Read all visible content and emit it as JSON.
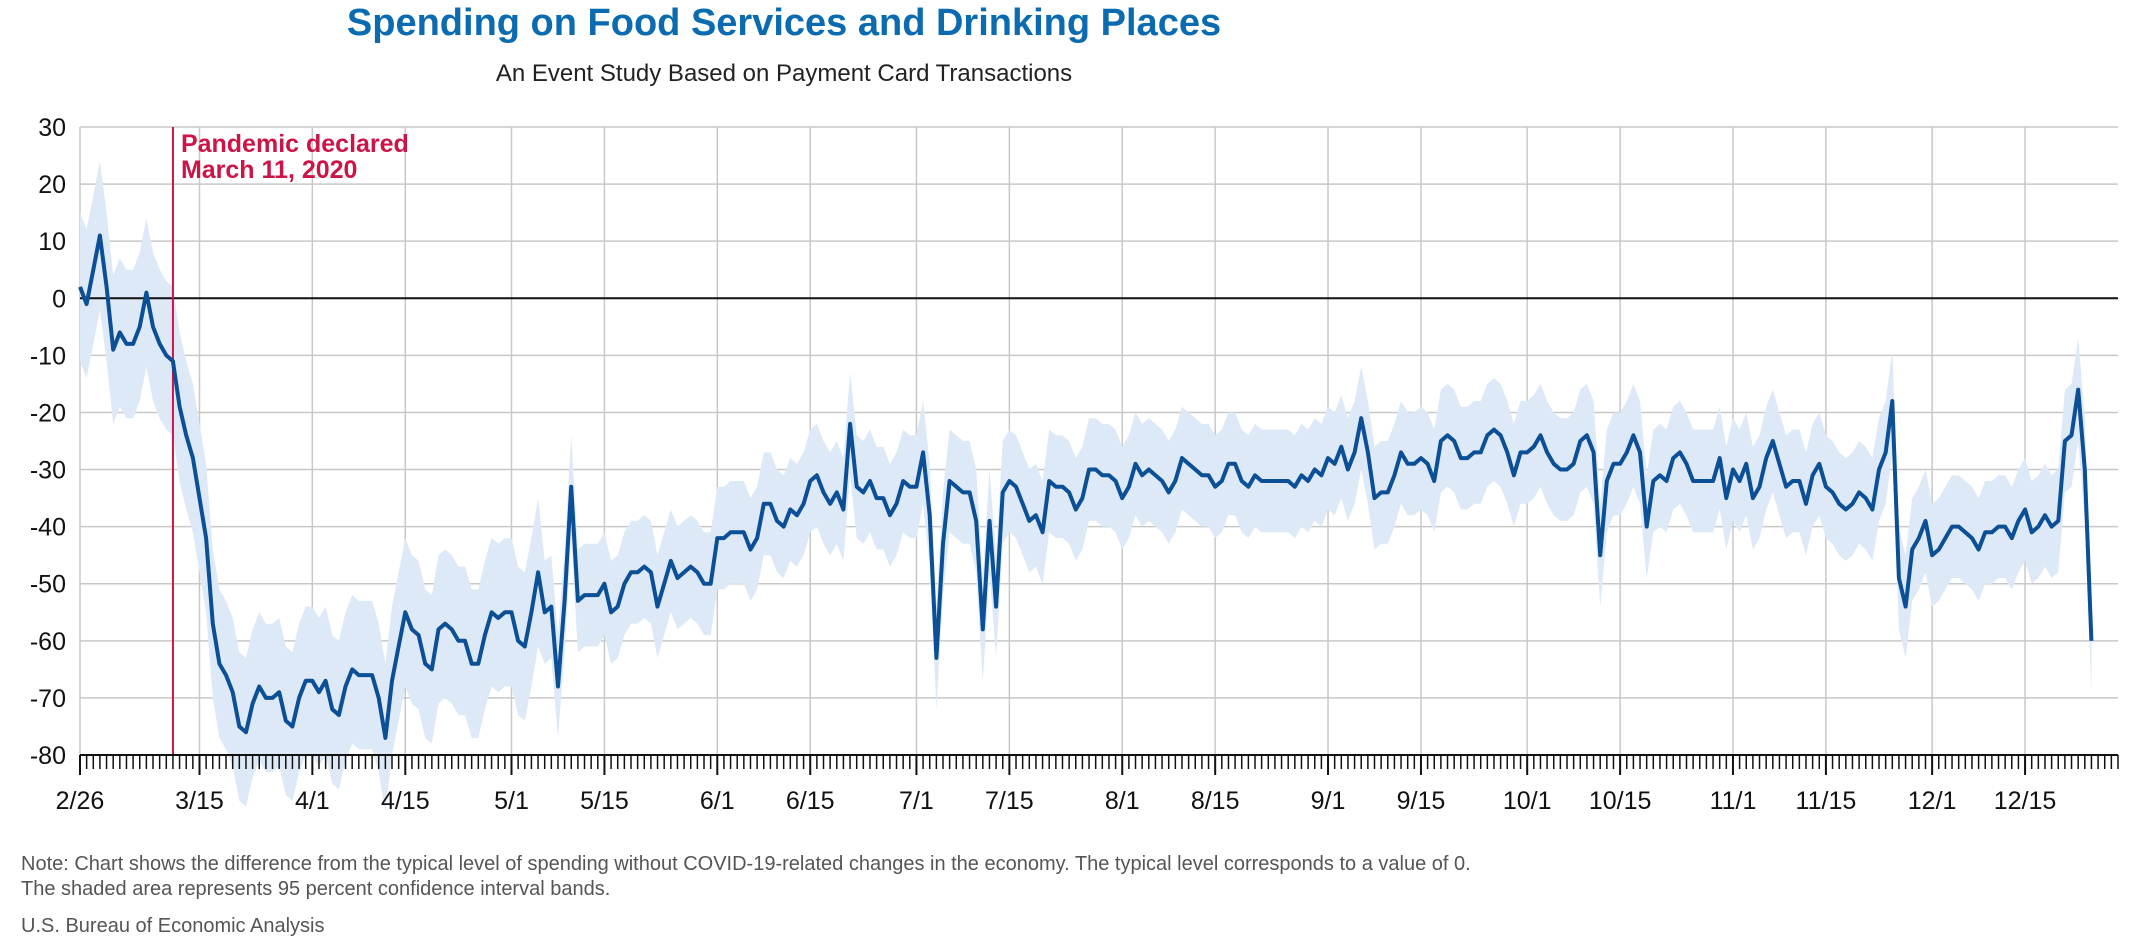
{
  "chart_data": {
    "type": "line",
    "title": "Spending on Food Services and Drinking Places",
    "subtitle": "An Event Study Based on Payment Card Transactions",
    "xlabel": "",
    "ylabel": "",
    "ylim": [
      -80,
      30
    ],
    "yticks": [
      30,
      20,
      10,
      0,
      -10,
      -20,
      -30,
      -40,
      -50,
      -60,
      -70,
      -80
    ],
    "x_tick_labels": [
      "2/26",
      "3/15",
      "4/1",
      "4/15",
      "5/1",
      "5/15",
      "6/1",
      "6/15",
      "7/1",
      "7/15",
      "8/1",
      "8/15",
      "9/1",
      "9/15",
      "10/1",
      "10/15",
      "11/1",
      "11/15",
      "12/1",
      "12/15"
    ],
    "grid": true,
    "confidence_band": "95 percent confidence interval",
    "annotation": {
      "date": "2020-03-11",
      "lines": [
        "Pandemic declared",
        "March 11, 2020"
      ],
      "color": "#cc1447"
    },
    "line_color": "#0b4f96",
    "band_color": "#dde9f7",
    "series": [
      {
        "x_start": "2020-02-26",
        "x_end": "2020-12-29",
        "x_step_days": 1,
        "values": [
          2,
          -1,
          5,
          11,
          2,
          -9,
          -6,
          -8,
          -8,
          -5,
          1,
          -5,
          -8,
          -10,
          -11,
          -19,
          -24,
          -28,
          -35,
          -42,
          -57,
          -64,
          -66,
          -69,
          -75,
          -76,
          -71,
          -68,
          -70,
          -70,
          -69,
          -74,
          -75,
          -70,
          -67,
          -67,
          -69,
          -67,
          -72,
          -73,
          -68,
          -65,
          -66,
          -66,
          -66,
          -70,
          -77,
          -67,
          -61,
          -55,
          -58,
          -59,
          -64,
          -65,
          -58,
          -57,
          -58,
          -60,
          -60,
          -64,
          -64,
          -59,
          -55,
          -56,
          -55,
          -55,
          -60,
          -61,
          -55,
          -48,
          -55,
          -54,
          -68,
          -53,
          -33,
          -53,
          -52,
          -52,
          -52,
          -50,
          -55,
          -54,
          -50,
          -48,
          -48,
          -47,
          -48,
          -54,
          -50,
          -46,
          -49,
          -48,
          -47,
          -48,
          -50,
          -50,
          -42,
          -42,
          -41,
          -41,
          -41,
          -44,
          -42,
          -36,
          -36,
          -39,
          -40,
          -37,
          -38,
          -36,
          -32,
          -31,
          -34,
          -36,
          -34,
          -37,
          -22,
          -33,
          -34,
          -32,
          -35,
          -35,
          -38,
          -36,
          -32,
          -33,
          -33,
          -27,
          -38,
          -63,
          -43,
          -32,
          -33,
          -34,
          -34,
          -39,
          -58,
          -39,
          -54,
          -34,
          -32,
          -33,
          -36,
          -39,
          -38,
          -41,
          -32,
          -33,
          -33,
          -34,
          -37,
          -35,
          -30,
          -30,
          -31,
          -31,
          -32,
          -35,
          -33,
          -29,
          -31,
          -30,
          -31,
          -32,
          -34,
          -32,
          -28,
          -29,
          -30,
          -31,
          -31,
          -33,
          -32,
          -29,
          -29,
          -32,
          -33,
          -31,
          -32,
          -32,
          -32,
          -32,
          -32,
          -33,
          -31,
          -32,
          -30,
          -31,
          -28,
          -29,
          -26,
          -30,
          -27,
          -21,
          -27,
          -35,
          -34,
          -34,
          -31,
          -27,
          -29,
          -29,
          -28,
          -29,
          -32,
          -25,
          -24,
          -25,
          -28,
          -28,
          -27,
          -27,
          -24,
          -23,
          -24,
          -27,
          -31,
          -27,
          -27,
          -26,
          -24,
          -27,
          -29,
          -30,
          -30,
          -29,
          -25,
          -24,
          -27,
          -45,
          -32,
          -29,
          -29,
          -27,
          -24,
          -27,
          -40,
          -32,
          -31,
          -32,
          -28,
          -27,
          -29,
          -32,
          -32,
          -32,
          -32,
          -28,
          -35,
          -30,
          -32,
          -29,
          -35,
          -33,
          -28,
          -25,
          -29,
          -33,
          -32,
          -32,
          -36,
          -31,
          -29,
          -33,
          -34,
          -36,
          -37,
          -36,
          -34,
          -35,
          -37,
          -30,
          -27,
          -18,
          -49,
          -54,
          -44,
          -42,
          -39,
          -45,
          -44,
          -42,
          -40,
          -40,
          -41,
          -42,
          -44,
          -41,
          -41,
          -40,
          -40,
          -42,
          -39,
          -37,
          -41,
          -40,
          -38,
          -40,
          -39,
          -25,
          -24,
          -16,
          -30,
          -60
        ]
      }
    ]
  },
  "note": [
    "Note: Chart shows the difference from the typical level of spending without COVID-19-related changes in the economy. The typical level corresponds to a value of 0.",
    "The shaded area represents 95 percent confidence interval bands."
  ],
  "source": "U.S. Bureau of Economic Analysis"
}
